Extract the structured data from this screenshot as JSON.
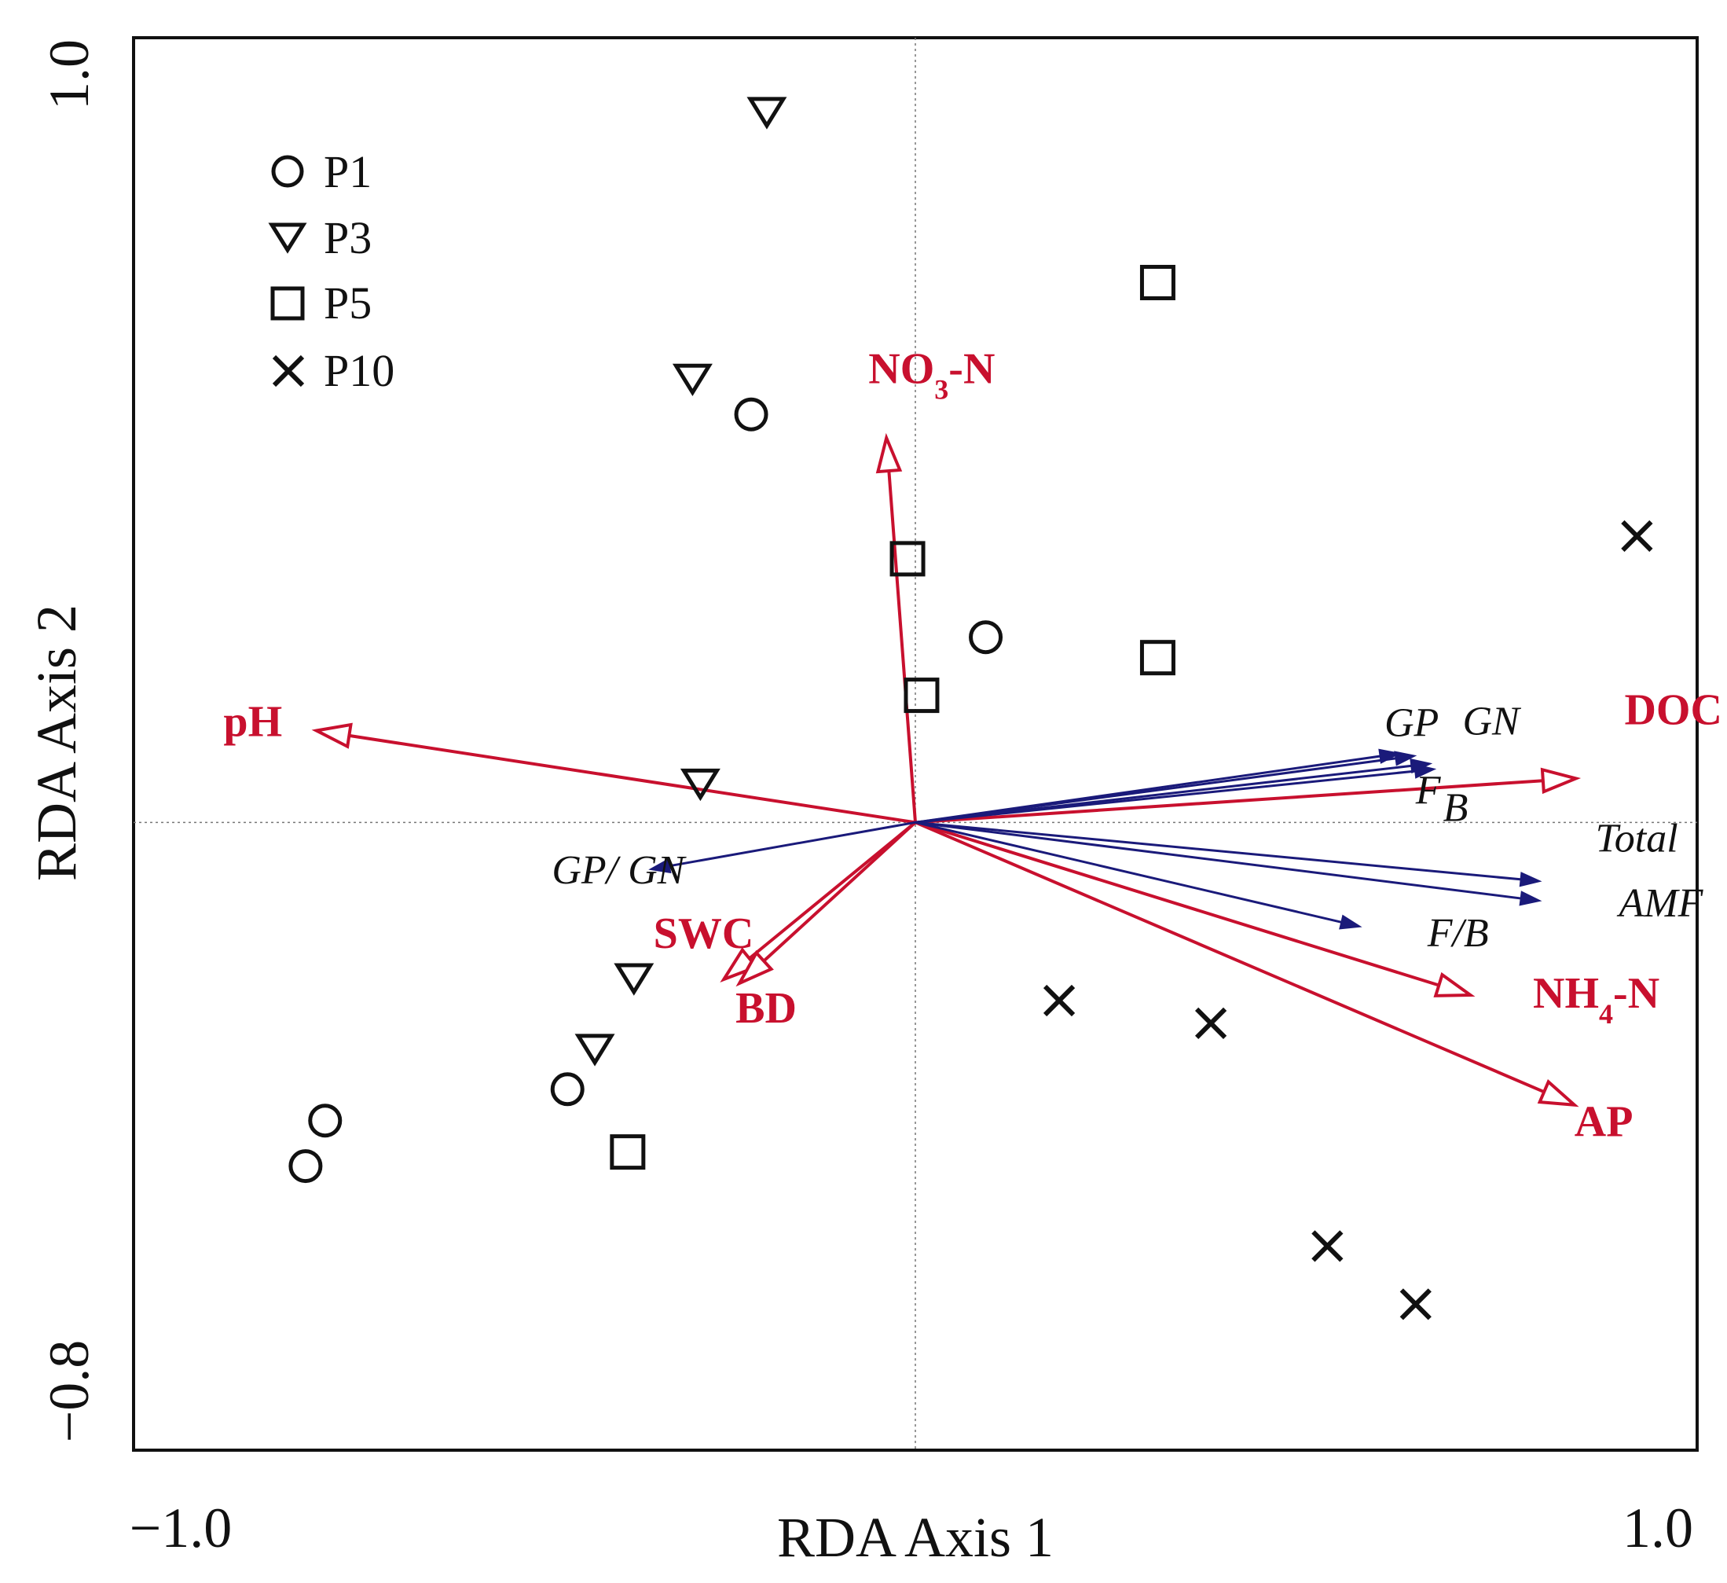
{
  "chart_data": {
    "type": "scatter",
    "subtype": "rda-biplot",
    "title": "",
    "xlabel": "RDA Axis 1",
    "ylabel": "RDA Axis 2",
    "xlim": [
      -1.0,
      1.0
    ],
    "ylim": [
      -0.8,
      1.0
    ],
    "x_ticks": [
      "−1.0",
      "1.0"
    ],
    "y_ticks": [
      "−0.8",
      "1.0"
    ],
    "grid": false,
    "zero_lines": true,
    "legend_position": "top-left",
    "colors": {
      "environment": "#c8102e",
      "response": "#1a1a7a",
      "sample": "#111111"
    },
    "series": [
      {
        "name": "P1",
        "marker": "circle",
        "points": [
          {
            "x": -0.21,
            "y": 0.52
          },
          {
            "x": 0.09,
            "y": 0.236
          },
          {
            "x": -0.445,
            "y": -0.34
          },
          {
            "x": -0.755,
            "y": -0.38
          },
          {
            "x": -0.78,
            "y": -0.438
          }
        ]
      },
      {
        "name": "P3",
        "marker": "triangle-down",
        "points": [
          {
            "x": -0.19,
            "y": 0.906
          },
          {
            "x": -0.285,
            "y": 0.566
          },
          {
            "x": -0.275,
            "y": 0.05
          },
          {
            "x": -0.36,
            "y": -0.198
          },
          {
            "x": -0.41,
            "y": -0.288
          }
        ]
      },
      {
        "name": "P5",
        "marker": "square",
        "points": [
          {
            "x": 0.31,
            "y": 0.688
          },
          {
            "x": -0.01,
            "y": 0.336
          },
          {
            "x": 0.31,
            "y": 0.21
          },
          {
            "x": 0.008,
            "y": 0.162
          },
          {
            "x": -0.368,
            "y": -0.42
          }
        ]
      },
      {
        "name": "P10",
        "marker": "cross",
        "points": [
          {
            "x": 0.923,
            "y": 0.365
          },
          {
            "x": 0.184,
            "y": -0.227
          },
          {
            "x": 0.378,
            "y": -0.256
          },
          {
            "x": 0.527,
            "y": -0.54
          },
          {
            "x": 0.64,
            "y": -0.614
          }
        ]
      }
    ],
    "environmental_vectors": [
      {
        "name": "NO₃-N",
        "x": -0.037,
        "y": 0.49
      },
      {
        "name": "pH",
        "x": -0.766,
        "y": 0.117
      },
      {
        "name": "DOC",
        "x": 0.845,
        "y": 0.056
      },
      {
        "name": "SWC",
        "x": -0.245,
        "y": -0.2
      },
      {
        "name": "BD",
        "x": -0.225,
        "y": -0.205
      },
      {
        "name": "NH₄-N",
        "x": 0.71,
        "y": -0.22
      },
      {
        "name": "AP",
        "x": 0.843,
        "y": -0.36
      }
    ],
    "response_vectors": [
      {
        "name": "GP",
        "x": 0.62,
        "y": 0.088
      },
      {
        "name": "GN",
        "x": 0.64,
        "y": 0.085
      },
      {
        "name": "F",
        "x": 0.66,
        "y": 0.075
      },
      {
        "name": "B",
        "x": 0.665,
        "y": 0.068
      },
      {
        "name": "GP/ GN",
        "x": -0.34,
        "y": -0.06
      },
      {
        "name": "Total",
        "x": 0.8,
        "y": -0.075
      },
      {
        "name": "AMF",
        "x": 0.8,
        "y": -0.1
      },
      {
        "name": "F/B",
        "x": 0.57,
        "y": -0.133
      }
    ],
    "annotations": [
      {
        "text": "NO₃-N",
        "x": -0.06,
        "y": 0.56,
        "color": "environment"
      },
      {
        "text": "pH",
        "x": -0.885,
        "y": 0.11,
        "color": "environment"
      },
      {
        "text": "DOC",
        "x": 0.907,
        "y": 0.125,
        "color": "environment"
      },
      {
        "text": "SWC",
        "x": -0.335,
        "y": -0.16,
        "color": "environment"
      },
      {
        "text": "BD",
        "x": -0.23,
        "y": -0.255,
        "color": "environment"
      },
      {
        "text": "NH₄-N",
        "x": 0.79,
        "y": -0.236,
        "color": "environment"
      },
      {
        "text": "AP",
        "x": 0.843,
        "y": -0.4,
        "color": "environment"
      },
      {
        "text": "GP",
        "x": 0.6,
        "y": 0.11,
        "color": "response"
      },
      {
        "text": "GN",
        "x": 0.7,
        "y": 0.112,
        "color": "response"
      },
      {
        "text": "F",
        "x": 0.64,
        "y": 0.024,
        "color": "response"
      },
      {
        "text": "B",
        "x": 0.675,
        "y": 0.002,
        "color": "response"
      },
      {
        "text": "GP/ GN",
        "x": -0.465,
        "y": -0.078,
        "color": "response"
      },
      {
        "text": "Total",
        "x": 0.87,
        "y": -0.037,
        "color": "response"
      },
      {
        "text": "AMF",
        "x": 0.9,
        "y": -0.12,
        "color": "response"
      },
      {
        "text": "F/B",
        "x": 0.655,
        "y": -0.158,
        "color": "response"
      }
    ]
  }
}
